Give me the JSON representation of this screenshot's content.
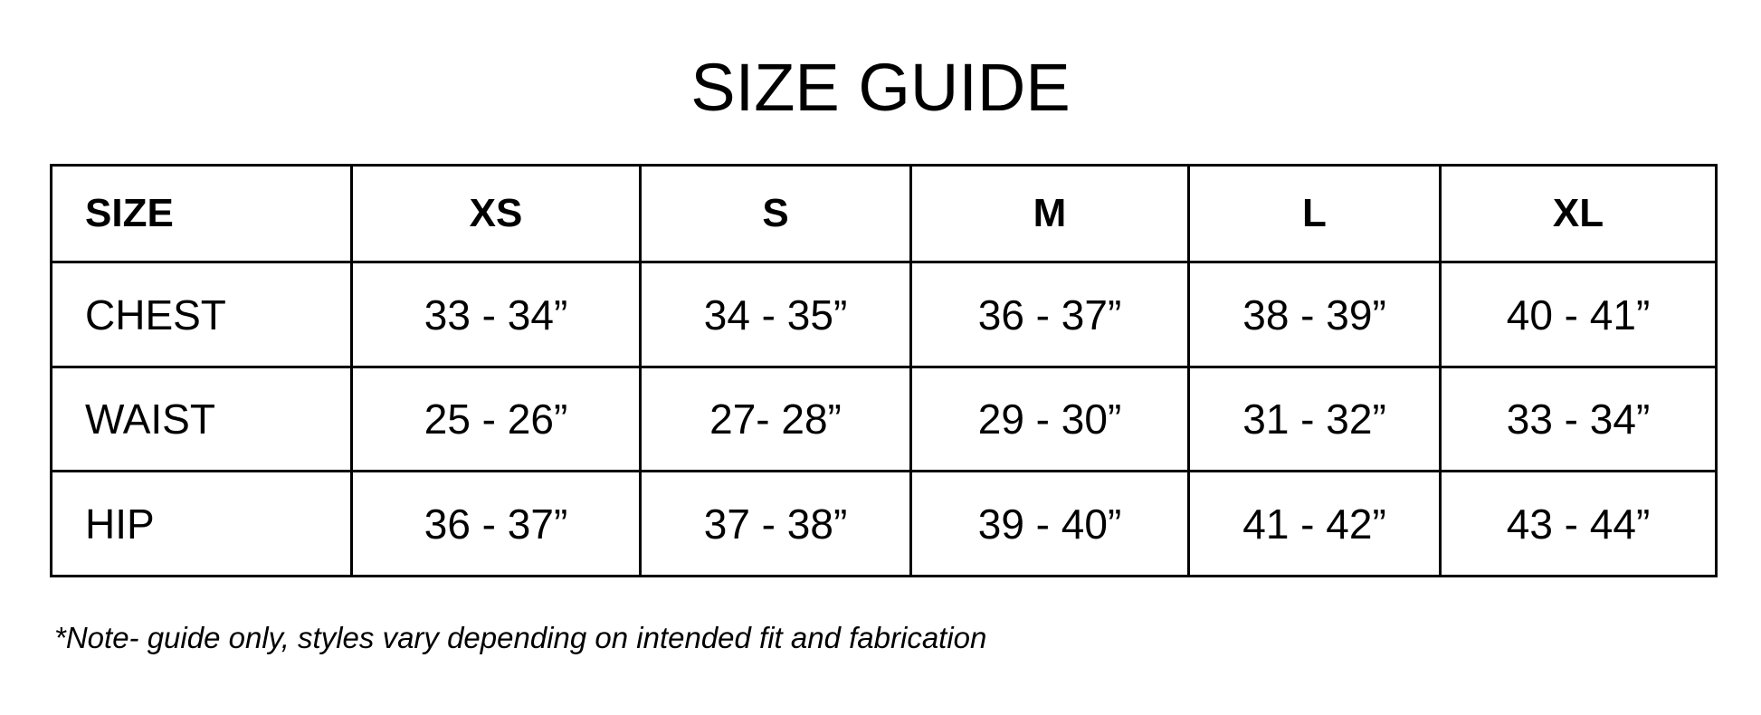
{
  "title": "SIZE GUIDE",
  "table": {
    "headers": [
      "SIZE",
      "XS",
      "S",
      "M",
      "L",
      "XL"
    ],
    "rows": [
      {
        "label": "CHEST",
        "values": [
          "33 - 34”",
          "34 - 35”",
          "36 - 37”",
          "38 - 39”",
          "40 - 41”"
        ]
      },
      {
        "label": "WAIST",
        "values": [
          "25 - 26”",
          "27- 28”",
          "29 - 30”",
          "31 - 32”",
          "33 - 34”"
        ]
      },
      {
        "label": "HIP",
        "values": [
          "36 - 37”",
          "37 - 38”",
          "39 - 40”",
          "41 - 42”",
          "43 - 44”"
        ]
      }
    ]
  },
  "note": "*Note- guide only, styles vary depending on intended fit and fabrication"
}
